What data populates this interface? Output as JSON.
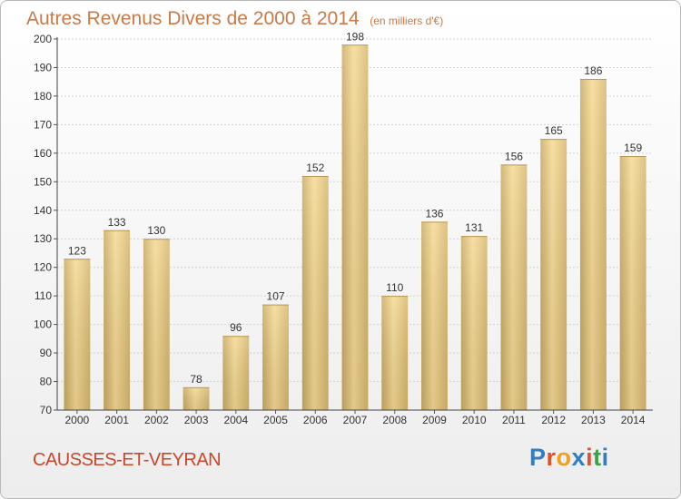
{
  "chart_data": {
    "type": "bar",
    "title": "Autres Revenus Divers de 2000 à 2014",
    "subtitle": "(en milliers d'€)",
    "categories": [
      "2000",
      "2001",
      "2002",
      "2003",
      "2004",
      "2005",
      "2006",
      "2007",
      "2008",
      "2009",
      "2010",
      "2011",
      "2012",
      "2013",
      "2014"
    ],
    "values": [
      123,
      133,
      130,
      78,
      96,
      107,
      152,
      198,
      110,
      136,
      131,
      156,
      165,
      186,
      159
    ],
    "xlabel": "",
    "ylabel": "",
    "ylim": [
      70,
      200
    ],
    "yticks": [
      70,
      80,
      90,
      100,
      110,
      120,
      130,
      140,
      150,
      160,
      170,
      180,
      190,
      200
    ],
    "grid": true,
    "bar_color": "#e8c880"
  },
  "footer": {
    "commune": "CAUSSES-ET-VEYRAN",
    "logo_letters": [
      {
        "ch": "P",
        "color": "#2f7fc2"
      },
      {
        "ch": "r",
        "color": "#e0512a"
      },
      {
        "ch": "o",
        "color": "#f0a020"
      },
      {
        "ch": "x",
        "color": "#2f7fc2"
      },
      {
        "ch": "i",
        "color": "#e0512a"
      },
      {
        "ch": "t",
        "color": "#3aa34a"
      },
      {
        "ch": "i",
        "color": "#2f7fc2"
      }
    ]
  }
}
